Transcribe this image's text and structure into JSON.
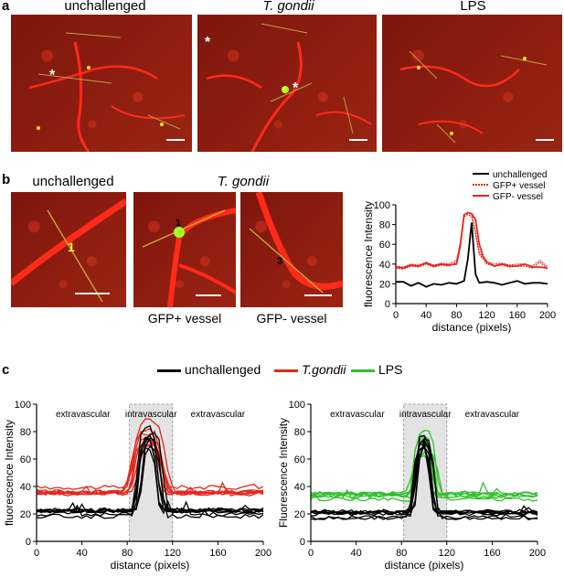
{
  "panel_a": {
    "letter": "a",
    "images": [
      {
        "label": "unchallenged",
        "italic": false
      },
      {
        "label": "T. gondii",
        "italic": true
      },
      {
        "label": "LPS",
        "italic": false
      }
    ],
    "star": "*"
  },
  "panel_b": {
    "letter": "b",
    "label_unchallenged": "unchallenged",
    "label_tgondii": "T. gondii",
    "caption_gfp_pos": "GFP+ vessel",
    "caption_gfp_neg": "GFP- vessel",
    "marker_1": "1",
    "marker_3": "3"
  },
  "panel_c": {
    "letter": "c",
    "legend": [
      "unchallenged",
      "T.gondii",
      "LPS"
    ],
    "region_labels": [
      "extravascular",
      "intravascular",
      "extravascular"
    ]
  },
  "colors": {
    "unchallenged": "#000000",
    "tgondii": "#e8261c",
    "lps": "#2fc22a",
    "band": "#e3e3e3"
  },
  "chart_data": [
    {
      "type": "line",
      "panel": "b",
      "ylabel": "fluorescence Intensity",
      "xlabel": "distance (pixels)",
      "xlim": [
        0,
        200
      ],
      "ylim": [
        0,
        100
      ],
      "xticks": [
        0,
        40,
        80,
        120,
        160,
        200
      ],
      "yticks": [
        0,
        20,
        40,
        60,
        80,
        100
      ],
      "legend_position": "top-right",
      "series": [
        {
          "name": "unchallenged",
          "color": "#000000",
          "x": [
            0,
            10,
            20,
            30,
            40,
            50,
            60,
            70,
            80,
            90,
            95,
            100,
            105,
            110,
            120,
            130,
            140,
            150,
            160,
            170,
            180,
            190,
            200
          ],
          "y": [
            22,
            22,
            18,
            21,
            17,
            20,
            19,
            21,
            20,
            23,
            45,
            82,
            30,
            21,
            22,
            21,
            19,
            21,
            23,
            20,
            21,
            21,
            20
          ]
        },
        {
          "name": "GFP+ vessel",
          "color": "#e8261c",
          "x": [
            0,
            10,
            20,
            30,
            40,
            50,
            60,
            70,
            80,
            85,
            90,
            95,
            100,
            105,
            110,
            115,
            120,
            130,
            140,
            150,
            160,
            170,
            180,
            190,
            200
          ],
          "y": [
            36,
            35,
            38,
            37,
            40,
            37,
            39,
            38,
            42,
            60,
            88,
            90,
            88,
            70,
            50,
            45,
            40,
            38,
            39,
            37,
            38,
            38,
            36,
            42,
            35
          ]
        },
        {
          "name": "GFP- vessel",
          "color": "#e8261c",
          "x": [
            0,
            10,
            20,
            30,
            40,
            50,
            60,
            70,
            80,
            85,
            90,
            95,
            100,
            105,
            110,
            115,
            120,
            130,
            140,
            150,
            160,
            170,
            180,
            190,
            200
          ],
          "y": [
            37,
            36,
            39,
            38,
            41,
            38,
            40,
            39,
            40,
            58,
            90,
            92,
            91,
            85,
            60,
            48,
            42,
            38,
            40,
            38,
            38,
            40,
            37,
            37,
            36
          ]
        }
      ]
    },
    {
      "type": "line",
      "panel": "c-left",
      "ylabel": "fluorescence Intensity",
      "xlabel": "distance (pixels)",
      "xlim": [
        0,
        200
      ],
      "ylim": [
        0,
        100
      ],
      "xticks": [
        0,
        40,
        80,
        120,
        160,
        200
      ],
      "yticks": [
        0,
        20,
        40,
        60,
        80,
        100
      ],
      "band": [
        82,
        120
      ],
      "series": [
        {
          "name": "T.gondii",
          "color": "#e8261c",
          "count": 8,
          "baseline": 37,
          "peak": 90,
          "center": 100,
          "width": 14
        },
        {
          "name": "unchallenged",
          "color": "#000000",
          "count": 8,
          "baseline": 20,
          "peak": 86,
          "center": 100,
          "width": 8
        }
      ]
    },
    {
      "type": "line",
      "panel": "c-right",
      "ylabel": "Fluorescence Intensity",
      "xlabel": "distance (pixels)",
      "xlim": [
        0,
        200
      ],
      "ylim": [
        0,
        100
      ],
      "xticks": [
        0,
        40,
        80,
        120,
        160,
        200
      ],
      "yticks": [
        0,
        20,
        40,
        60,
        80,
        100
      ],
      "band": [
        82,
        120
      ],
      "series": [
        {
          "name": "LPS",
          "color": "#2fc22a",
          "count": 7,
          "baseline": 33,
          "peak": 82,
          "center": 100,
          "width": 9
        },
        {
          "name": "unchallenged",
          "color": "#000000",
          "count": 8,
          "baseline": 20,
          "peak": 86,
          "center": 100,
          "width": 8
        }
      ]
    }
  ]
}
